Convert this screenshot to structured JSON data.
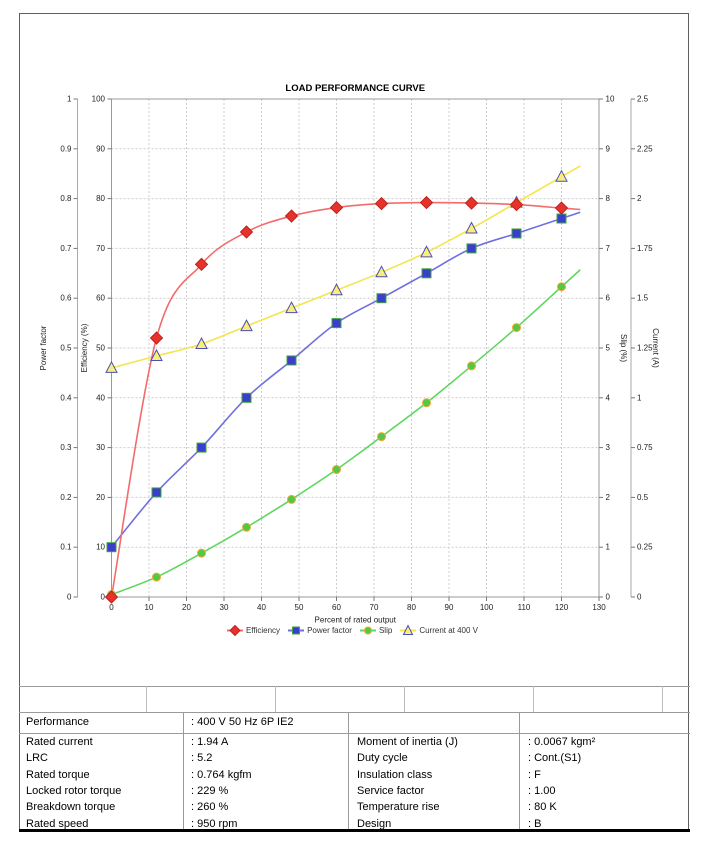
{
  "chart_data": {
    "type": "line",
    "title": "LOAD PERFORMANCE CURVE",
    "xlabel": "Percent of rated output",
    "xlim": [
      0,
      130
    ],
    "x_tick_step": 10,
    "grid": true,
    "legend_position": "bottom",
    "x": [
      0,
      12,
      24,
      36,
      48,
      60,
      72,
      84,
      96,
      108,
      120
    ],
    "axes": [
      {
        "id": "power_factor",
        "label": "Power factor",
        "side": "left-outer",
        "lim": [
          0,
          1
        ],
        "tick_step": 0.1
      },
      {
        "id": "efficiency",
        "label": "Efficiency (%)",
        "side": "left",
        "lim": [
          0,
          100
        ],
        "tick_step": 10
      },
      {
        "id": "slip",
        "label": "Slip (%)",
        "side": "right",
        "lim": [
          0,
          10
        ],
        "tick_step": 1
      },
      {
        "id": "current",
        "label": "Current (A)",
        "side": "right-outer",
        "lim": [
          0,
          2.5
        ],
        "tick_step": 0.25
      }
    ],
    "series": [
      {
        "name": "Efficiency",
        "axis": "efficiency",
        "marker": "diamond",
        "line_color": "#f26c6c",
        "marker_fill": "#e5332a",
        "marker_stroke": "#bf2020",
        "values": [
          0,
          52,
          66.8,
          73.3,
          76.5,
          78.2,
          79.0,
          79.2,
          79.1,
          78.8,
          78.1
        ]
      },
      {
        "name": "Power factor",
        "axis": "power_factor",
        "marker": "square",
        "line_color": "#6f6fe0",
        "marker_fill": "#3c3ccd",
        "marker_stroke": "#3da43d",
        "values": [
          0.1,
          0.21,
          0.3,
          0.4,
          0.475,
          0.55,
          0.6,
          0.65,
          0.7,
          0.73,
          0.76
        ]
      },
      {
        "name": "Slip",
        "axis": "slip",
        "marker": "circle",
        "line_color": "#5fd65f",
        "marker_fill": "#52c844",
        "marker_stroke": "#f0a832",
        "values": [
          0.05,
          0.4,
          0.88,
          1.4,
          1.96,
          2.56,
          3.22,
          3.9,
          4.64,
          5.41,
          6.23
        ]
      },
      {
        "name": "Current at 400 V",
        "axis": "current",
        "marker": "triangle",
        "line_color": "#f4e54d",
        "marker_fill": "#f8ef7a",
        "marker_stroke": "#4d4db8",
        "values": [
          1.15,
          1.21,
          1.27,
          1.36,
          1.45,
          1.54,
          1.63,
          1.73,
          1.85,
          1.98,
          2.11
        ]
      }
    ]
  },
  "spec_table": {
    "header_row": {
      "label": "Performance",
      "value": ": 400 V 50 Hz 6P IE2"
    },
    "left_rows": [
      {
        "label": "Rated current",
        "value": ": 1.94 A"
      },
      {
        "label": "LRC",
        "value": ": 5.2"
      },
      {
        "label": "Rated torque",
        "value": ": 0.764 kgfm"
      },
      {
        "label": "Locked rotor torque",
        "value": ": 229 %"
      },
      {
        "label": "Breakdown torque",
        "value": ": 260 %"
      },
      {
        "label": "Rated speed",
        "value": ": 950 rpm"
      }
    ],
    "right_rows": [
      {
        "label": "Moment of inertia (J)",
        "value": ": 0.0067 kgm²"
      },
      {
        "label": "Duty cycle",
        "value": ": Cont.(S1)"
      },
      {
        "label": "Insulation class",
        "value": ": F"
      },
      {
        "label": "Service factor",
        "value": ": 1.00"
      },
      {
        "label": "Temperature rise",
        "value": ": 80 K"
      },
      {
        "label": "Design",
        "value": ": B"
      }
    ]
  }
}
